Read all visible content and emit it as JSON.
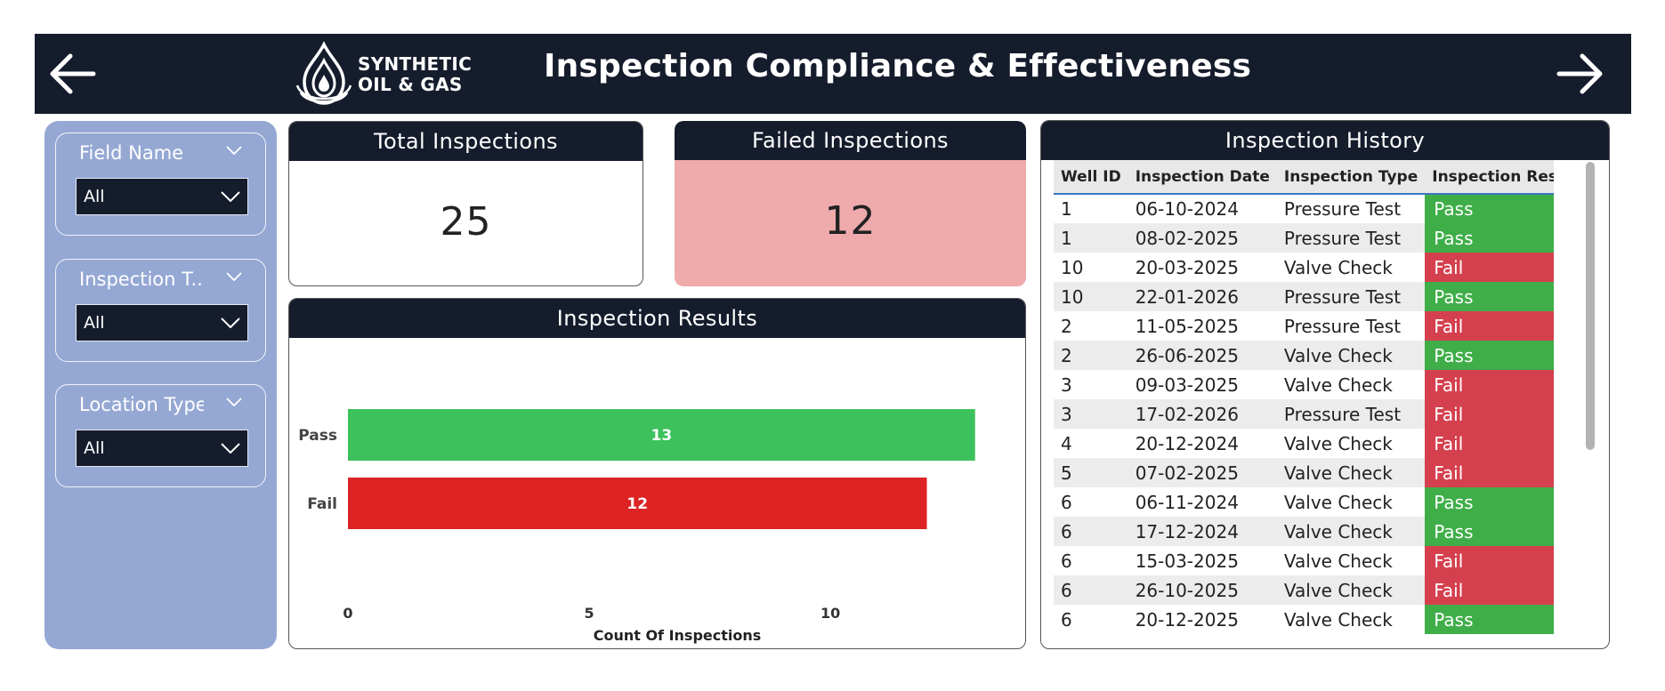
{
  "header": {
    "title": "Inspection Compliance & Effectiveness",
    "logo_line1": "SYNTHETIC",
    "logo_line2": "OIL & GAS",
    "back_icon": "arrow-left-icon",
    "forward_icon": "arrow-right-icon",
    "background": "#151c2c"
  },
  "filters": [
    {
      "title": "Field Name",
      "value": "All"
    },
    {
      "title": "Inspection T...",
      "value": "All"
    },
    {
      "title": "Location Type",
      "value": "All"
    }
  ],
  "kpis": {
    "total": {
      "title": "Total Inspections",
      "value": "25"
    },
    "failed": {
      "title": "Failed Inspections",
      "value": "12",
      "background": "#efaaac"
    }
  },
  "results_card": {
    "title": "Inspection Results"
  },
  "chart_data": {
    "type": "bar",
    "orientation": "horizontal",
    "categories": [
      "Pass",
      "Fail"
    ],
    "values": [
      13,
      12
    ],
    "colors": [
      "#3cc15c",
      "#dd2324"
    ],
    "xlabel": "Count Of Inspections",
    "ylabel": "",
    "xlim": [
      0,
      13.3
    ],
    "xticks": [
      0,
      5,
      10
    ],
    "data_labels": true,
    "grid": false
  },
  "history": {
    "title": "Inspection History",
    "columns": [
      "Well ID",
      "Inspection Date",
      "Inspection Type",
      "Inspection Result"
    ],
    "rows": [
      [
        "1",
        "06-10-2024",
        "Pressure Test",
        "Pass"
      ],
      [
        "1",
        "08-02-2025",
        "Pressure Test",
        "Pass"
      ],
      [
        "10",
        "20-03-2025",
        "Valve Check",
        "Fail"
      ],
      [
        "10",
        "22-01-2026",
        "Pressure Test",
        "Pass"
      ],
      [
        "2",
        "11-05-2025",
        "Pressure Test",
        "Fail"
      ],
      [
        "2",
        "26-06-2025",
        "Valve Check",
        "Pass"
      ],
      [
        "3",
        "09-03-2025",
        "Valve Check",
        "Fail"
      ],
      [
        "3",
        "17-02-2026",
        "Pressure Test",
        "Fail"
      ],
      [
        "4",
        "20-12-2024",
        "Valve Check",
        "Fail"
      ],
      [
        "5",
        "07-02-2025",
        "Valve Check",
        "Fail"
      ],
      [
        "6",
        "06-11-2024",
        "Valve Check",
        "Pass"
      ],
      [
        "6",
        "17-12-2024",
        "Valve Check",
        "Pass"
      ],
      [
        "6",
        "15-03-2025",
        "Valve Check",
        "Fail"
      ],
      [
        "6",
        "26-10-2025",
        "Valve Check",
        "Fail"
      ],
      [
        "6",
        "20-12-2025",
        "Valve Check",
        "Pass"
      ]
    ],
    "pass_color": "#3fae49",
    "fail_color": "#d5404e"
  }
}
